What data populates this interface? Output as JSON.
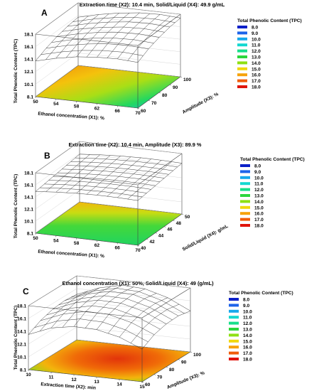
{
  "chart_data": [
    {
      "type": "surface",
      "panel_label": "A",
      "title": "Extraction time (X2): 10.4 min, Solid/Liquid (X4): 49.9 g/mL",
      "xlabel": "Ethanol concentration (X1): %",
      "ylabel": "Amplitude (X3): %",
      "zlabel": "Total Phenolic Content (TPC)",
      "x_ticks": [
        "50",
        "54",
        "58",
        "62",
        "66",
        "70"
      ],
      "y_ticks": [
        "60",
        "70",
        "80",
        "90",
        "100"
      ],
      "z_ticks": [
        "8.1",
        "10.1",
        "12.1",
        "14.1",
        "16.1",
        "18.1"
      ],
      "x_range": [
        50,
        70
      ],
      "y_range": [
        60,
        100
      ],
      "z_range": [
        8.1,
        18.1
      ],
      "legend_title": "Total Phenolic Content (TPC)",
      "legend_values": [
        "8.0",
        "9.0",
        "10.0",
        "11.0",
        "12.0",
        "13.0",
        "14.0",
        "15.0",
        "16.0",
        "17.0",
        "18.0"
      ],
      "surface_z": [
        [
          13.8,
          14.6,
          15.2,
          15.6,
          15.8
        ],
        [
          14.6,
          15.4,
          16.0,
          16.4,
          16.6
        ],
        [
          15.2,
          16.0,
          16.6,
          17.0,
          17.2
        ],
        [
          15.5,
          16.4,
          17.0,
          17.4,
          17.6
        ],
        [
          15.6,
          16.5,
          17.1,
          17.5,
          17.7
        ],
        [
          15.4,
          16.3,
          16.9,
          17.3,
          17.5
        ]
      ]
    },
    {
      "type": "surface",
      "panel_label": "B",
      "title": "Extraction time (X2): 10.4 min, Amplitude (X3): 89.9 %",
      "xlabel": "Ethanol concentration (X1): %",
      "ylabel": "Solid/Liquid (X4): g/mL",
      "zlabel": "Total Phenolic Content (TPC)",
      "x_ticks": [
        "50",
        "54",
        "58",
        "62",
        "66",
        "70"
      ],
      "y_ticks": [
        "40",
        "42",
        "44",
        "46",
        "48",
        "50"
      ],
      "z_ticks": [
        "8.1",
        "10.1",
        "12.1",
        "14.1",
        "16.1",
        "18.1"
      ],
      "x_range": [
        50,
        70
      ],
      "y_range": [
        40,
        50
      ],
      "z_range": [
        8.1,
        18.1
      ],
      "legend_title": "Total Phenolic Content (TPC)",
      "legend_values": [
        "8.0",
        "9.0",
        "10.0",
        "11.0",
        "12.0",
        "13.0",
        "14.0",
        "15.0",
        "16.0",
        "17.0",
        "18.0"
      ],
      "surface_z": [
        [
          15.0,
          15.2,
          15.4,
          15.6,
          15.8,
          16.0
        ],
        [
          15.3,
          15.5,
          15.7,
          15.9,
          16.1,
          16.3
        ],
        [
          15.5,
          15.7,
          15.9,
          16.1,
          16.3,
          16.5
        ],
        [
          15.6,
          15.8,
          16.0,
          16.2,
          16.4,
          16.6
        ],
        [
          15.6,
          15.8,
          16.0,
          16.2,
          16.4,
          16.6
        ],
        [
          15.5,
          15.7,
          15.9,
          16.1,
          16.3,
          16.5
        ]
      ]
    },
    {
      "type": "surface",
      "panel_label": "C",
      "title": "Ethanol concentration (X1): 50%, Solid/Liquid (X4): 49 (g/mL)",
      "xlabel": "Extraction time (X2): min",
      "ylabel": "Amplitude (X3): %",
      "zlabel": "Total Phenolic Content (TPC)",
      "x_ticks": [
        "10",
        "11",
        "12",
        "13",
        "14",
        "15"
      ],
      "y_ticks": [
        "60",
        "70",
        "80",
        "90",
        "100"
      ],
      "z_ticks": [
        "8.1",
        "10.1",
        "12.1",
        "14.1",
        "16.1",
        "18.1"
      ],
      "x_range": [
        10,
        15
      ],
      "y_range": [
        60,
        100
      ],
      "z_range": [
        8.1,
        18.1
      ],
      "legend_title": "Total Phenolic Content (TPC)",
      "legend_values": [
        "8.0",
        "9.0",
        "10.0",
        "11.0",
        "12.0",
        "13.0",
        "14.0",
        "15.0",
        "16.0",
        "17.0",
        "18.0"
      ],
      "surface_z": [
        [
          13.6,
          14.6,
          15.2,
          15.4,
          15.2
        ],
        [
          15.0,
          16.0,
          16.6,
          16.8,
          16.6
        ],
        [
          15.6,
          16.8,
          17.4,
          17.6,
          17.4
        ],
        [
          15.5,
          16.7,
          17.3,
          17.5,
          17.2
        ],
        [
          14.7,
          15.8,
          16.4,
          16.5,
          16.2
        ],
        [
          13.2,
          14.3,
          14.8,
          14.9,
          14.5
        ]
      ]
    }
  ],
  "legend_colors": [
    "#0a1fc8",
    "#1d63ea",
    "#17a8ec",
    "#14d8d0",
    "#17de8a",
    "#2bd63c",
    "#8ee013",
    "#f0d80c",
    "#f6a20a",
    "#f05c08",
    "#e0140a"
  ]
}
